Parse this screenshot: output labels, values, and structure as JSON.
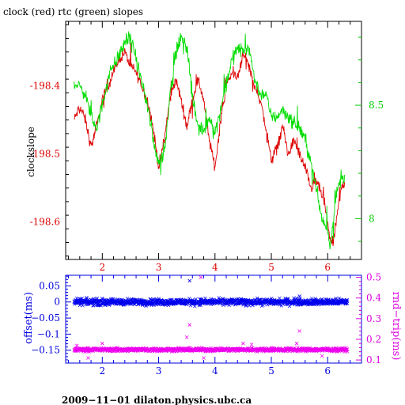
{
  "chart_data": [
    {
      "type": "line",
      "title": "clock (red) rtc (green) slopes",
      "ylabel": "clockslope",
      "xlim": [
        1.35,
        6.6
      ],
      "x_ticks": [
        "2",
        "3",
        "4",
        "5",
        "6"
      ],
      "y_left": {
        "lim": [
          -198.655,
          -198.305
        ],
        "ticks": [
          "-198.4",
          "-198.5",
          "-198.6"
        ],
        "tick_values": [
          -198.4,
          -198.5,
          -198.6
        ],
        "color": "#dd0000"
      },
      "y_right": {
        "lim": [
          7.82,
          8.87
        ],
        "ticks": [
          "8.5",
          "8"
        ],
        "tick_values": [
          8.5,
          8.0
        ],
        "color": "#00dd00"
      },
      "series": [
        {
          "color": "#dd0000",
          "axis": "left",
          "x": [
            1.5,
            1.6,
            1.7,
            1.8,
            1.9,
            2.0,
            2.1,
            2.2,
            2.3,
            2.4,
            2.5,
            2.6,
            2.7,
            2.8,
            2.9,
            3.0,
            3.1,
            3.2,
            3.3,
            3.4,
            3.5,
            3.6,
            3.7,
            3.8,
            3.9,
            4.0,
            4.1,
            4.2,
            4.3,
            4.4,
            4.5,
            4.6,
            4.7,
            4.8,
            4.9,
            5.0,
            5.1,
            5.2,
            5.3,
            5.4,
            5.5,
            5.6,
            5.7,
            5.8,
            5.9,
            6.0,
            6.05,
            6.1,
            6.15,
            6.2,
            6.25,
            6.3
          ],
          "y": [
            -198.45,
            -198.43,
            -198.45,
            -198.49,
            -198.46,
            -198.42,
            -198.4,
            -198.38,
            -198.36,
            -198.35,
            -198.37,
            -198.38,
            -198.4,
            -198.42,
            -198.46,
            -198.52,
            -198.48,
            -198.42,
            -198.39,
            -198.42,
            -198.46,
            -198.42,
            -198.39,
            -198.42,
            -198.48,
            -198.52,
            -198.45,
            -198.4,
            -198.38,
            -198.39,
            -198.35,
            -198.37,
            -198.4,
            -198.42,
            -198.46,
            -198.51,
            -198.49,
            -198.46,
            -198.5,
            -198.48,
            -198.5,
            -198.52,
            -198.55,
            -198.54,
            -198.56,
            -198.6,
            -198.63,
            -198.63,
            -198.6,
            -198.57,
            -198.55,
            -198.54
          ]
        },
        {
          "color": "#00dd00",
          "axis": "right",
          "x": [
            1.5,
            1.6,
            1.7,
            1.8,
            1.9,
            2.0,
            2.1,
            2.2,
            2.3,
            2.4,
            2.5,
            2.6,
            2.7,
            2.8,
            2.9,
            3.0,
            3.1,
            3.2,
            3.3,
            3.4,
            3.5,
            3.6,
            3.7,
            3.8,
            3.9,
            4.0,
            4.1,
            4.2,
            4.3,
            4.4,
            4.5,
            4.6,
            4.7,
            4.8,
            4.9,
            5.0,
            5.1,
            5.2,
            5.3,
            5.4,
            5.5,
            5.6,
            5.7,
            5.8,
            5.9,
            6.0,
            6.05,
            6.1,
            6.15,
            6.2,
            6.25,
            6.3
          ],
          "y": [
            8.6,
            8.58,
            8.55,
            8.45,
            8.4,
            8.5,
            8.62,
            8.68,
            8.72,
            8.78,
            8.8,
            8.7,
            8.6,
            8.5,
            8.35,
            8.25,
            8.28,
            8.55,
            8.72,
            8.8,
            8.75,
            8.55,
            8.4,
            8.38,
            8.45,
            8.38,
            8.48,
            8.6,
            8.7,
            8.75,
            8.74,
            8.76,
            8.62,
            8.55,
            8.55,
            8.45,
            8.45,
            8.48,
            8.45,
            8.42,
            8.4,
            8.35,
            8.25,
            8.12,
            8.0,
            7.95,
            7.88,
            8.0,
            8.1,
            8.15,
            8.18,
            8.19
          ]
        }
      ]
    },
    {
      "type": "scatter",
      "ylabel_left": "offset(ms)",
      "ylabel_right": "rnd−trip(ms)",
      "xlim": [
        1.35,
        6.6
      ],
      "x_ticks": [
        "2",
        "3",
        "4",
        "5",
        "6"
      ],
      "y_left": {
        "lim": [
          -0.19,
          0.083
        ],
        "ticks": [
          "0.05",
          "0",
          "−0.05",
          "−0.1",
          "−0.15"
        ],
        "tick_values": [
          0.05,
          0.0,
          -0.05,
          -0.1,
          -0.15
        ],
        "color": "#0000dd"
      },
      "y_right": {
        "lim": [
          0.085,
          0.51
        ],
        "ticks": [
          "0.5",
          "0.4",
          "0.3",
          "0.2",
          "0.1"
        ],
        "tick_values": [
          0.5,
          0.4,
          0.3,
          0.2,
          0.1
        ],
        "color": "#dd00dd"
      },
      "series": [
        {
          "color": "#0000ee",
          "axis": "left",
          "marker": "x",
          "x_range": [
            1.5,
            6.35
          ],
          "baseline": 0.0,
          "spread": 0.006,
          "outliers": [
            [
              3.55,
              0.066
            ],
            [
              1.85,
              0.01
            ],
            [
              2.35,
              0.007
            ],
            [
              3.4,
              0.008
            ],
            [
              5.5,
              0.018
            ],
            [
              5.4,
              0.012
            ],
            [
              2.7,
              0.006
            ],
            [
              4.3,
              0.009
            ],
            [
              4.55,
              -0.012
            ],
            [
              3.0,
              -0.008
            ],
            [
              6.2,
              0.005
            ],
            [
              2.05,
              -0.01
            ]
          ]
        },
        {
          "color": "#ee00ee",
          "axis": "right",
          "marker": "x",
          "x_range": [
            1.5,
            6.35
          ],
          "baseline": 0.15,
          "spread": 0.005,
          "outliers": [
            [
              3.75,
              0.5
            ],
            [
              3.55,
              0.27
            ],
            [
              2.0,
              0.18
            ],
            [
              3.5,
              0.21
            ],
            [
              4.5,
              0.18
            ],
            [
              4.65,
              0.175
            ],
            [
              5.5,
              0.24
            ],
            [
              5.45,
              0.18
            ],
            [
              1.55,
              0.17
            ],
            [
              1.75,
              0.11
            ],
            [
              3.8,
              0.11
            ],
            [
              5.9,
              0.12
            ]
          ]
        }
      ]
    }
  ],
  "footer": "2009−11−01  dilaton.physics.ubc.ca"
}
